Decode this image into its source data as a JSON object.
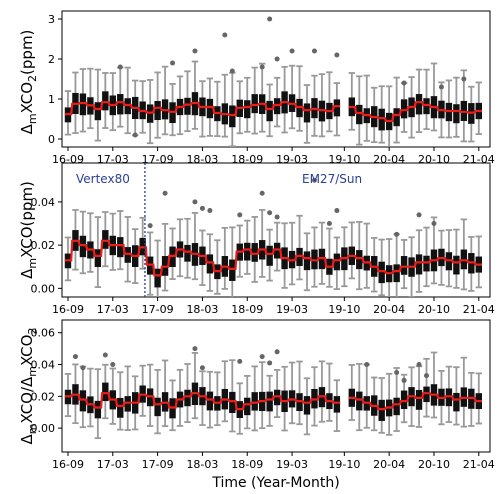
{
  "figure": {
    "xlabel": "Time (Year-Month)",
    "x_tick_labels": [
      "16-09",
      "17-03",
      "17-09",
      "18-03",
      "18-09",
      "19-03",
      "19-10",
      "20-04",
      "20-10",
      "21-04"
    ],
    "x_tick_months": [
      0,
      6,
      12,
      18,
      24,
      30,
      37,
      43,
      49,
      55
    ],
    "month_range": [
      -0.8,
      56.5
    ],
    "colors": {
      "box": "#111111",
      "whisker": "#999999",
      "median": "#e8201c",
      "outlier": "#666666",
      "divider": "#2a3f9a",
      "annotation": "#2a3f9a"
    },
    "annotations": {
      "left": "Vertex80",
      "right": "EM27/Sun",
      "divider_month": 10.3
    }
  },
  "chart_data": [
    {
      "type": "box",
      "panel": "top",
      "ylabel": {
        "prefix": "Δ",
        "sub1": "m",
        "mid": "XCO",
        "sub2": "2",
        "suffix": "(ppm)"
      },
      "ylim": [
        -0.2,
        3.2
      ],
      "yticks": [
        0,
        1,
        2,
        3
      ],
      "medians": [
        0.62,
        0.88,
        0.9,
        0.84,
        0.75,
        0.92,
        0.85,
        0.92,
        0.85,
        0.78,
        0.7,
        0.66,
        0.78,
        0.72,
        0.68,
        0.8,
        0.86,
        0.9,
        0.8,
        0.8,
        0.65,
        0.62,
        0.6,
        0.78,
        0.8,
        0.85,
        0.88,
        0.75,
        0.85,
        0.92,
        0.88,
        0.8,
        0.72,
        0.75,
        0.72,
        0.7,
        0.82,
        0.86,
        0.8,
        0.65,
        0.6,
        0.55,
        0.52,
        0.45,
        0.6,
        0.72,
        0.8,
        0.92,
        0.85,
        0.8,
        0.72,
        0.7,
        0.7,
        0.68,
        0.66,
        0.7
      ],
      "gaps": [
        37
      ],
      "outliers": [
        [
          7,
          1.8
        ],
        [
          9,
          0.1
        ],
        [
          14,
          1.9
        ],
        [
          17,
          2.2
        ],
        [
          21,
          2.6
        ],
        [
          22,
          1.7
        ],
        [
          26,
          1.8
        ],
        [
          27,
          3.0
        ],
        [
          28,
          2.0
        ],
        [
          30,
          2.2
        ],
        [
          33,
          2.2
        ],
        [
          36,
          2.1
        ],
        [
          45,
          1.4
        ],
        [
          50,
          1.3
        ],
        [
          53,
          1.5
        ]
      ]
    },
    {
      "type": "box",
      "panel": "middle",
      "ylabel": {
        "prefix": "Δ",
        "sub1": "m",
        "mid": "XCO",
        "sub2": "",
        "suffix": "(ppm)"
      },
      "ylim": [
        -0.004,
        0.058
      ],
      "yticks": [
        0.0,
        0.02,
        0.04
      ],
      "medians": [
        0.013,
        0.022,
        0.02,
        0.018,
        0.015,
        0.022,
        0.02,
        0.02,
        0.016,
        0.015,
        0.019,
        0.011,
        0.006,
        0.01,
        0.015,
        0.018,
        0.017,
        0.016,
        0.015,
        0.012,
        0.008,
        0.01,
        0.009,
        0.017,
        0.018,
        0.016,
        0.018,
        0.016,
        0.018,
        0.014,
        0.013,
        0.015,
        0.014,
        0.013,
        0.014,
        0.01,
        0.013,
        0.014,
        0.015,
        0.014,
        0.012,
        0.01,
        0.008,
        0.007,
        0.008,
        0.01,
        0.01,
        0.012,
        0.012,
        0.013,
        0.014,
        0.013,
        0.012,
        0.013,
        0.012,
        0.011
      ],
      "gaps": [],
      "outliers": [
        [
          11,
          0.029
        ],
        [
          13,
          0.044
        ],
        [
          17,
          0.04
        ],
        [
          18,
          0.037
        ],
        [
          19,
          0.036
        ],
        [
          23,
          0.034
        ],
        [
          26,
          0.044
        ],
        [
          27,
          0.035
        ],
        [
          28,
          0.033
        ],
        [
          33,
          0.05
        ],
        [
          35,
          0.03
        ],
        [
          36,
          0.036
        ],
        [
          44,
          0.025
        ],
        [
          47,
          0.034
        ],
        [
          49,
          0.03
        ]
      ]
    },
    {
      "type": "box",
      "panel": "bottom",
      "ylabel": {
        "prefix": "Δ",
        "sub1": "m",
        "mid": "XCO/Δ",
        "sub2": "m",
        "suffix": "XCO",
        "sub3": "2"
      },
      "ylim": [
        -0.015,
        0.068
      ],
      "yticks": [
        0.0,
        0.02,
        0.04,
        0.06
      ],
      "medians": [
        0.02,
        0.021,
        0.018,
        0.015,
        0.013,
        0.022,
        0.018,
        0.014,
        0.016,
        0.016,
        0.021,
        0.02,
        0.015,
        0.016,
        0.013,
        0.018,
        0.02,
        0.022,
        0.02,
        0.018,
        0.016,
        0.018,
        0.017,
        0.012,
        0.015,
        0.016,
        0.017,
        0.018,
        0.02,
        0.017,
        0.018,
        0.017,
        0.016,
        0.018,
        0.02,
        0.017,
        0.016,
        0.015,
        0.019,
        0.018,
        0.016,
        0.014,
        0.012,
        0.013,
        0.015,
        0.017,
        0.02,
        0.019,
        0.022,
        0.021,
        0.019,
        0.02,
        0.018,
        0.019,
        0.019,
        0.017
      ],
      "gaps": [
        37
      ],
      "outliers": [
        [
          1,
          0.045
        ],
        [
          2,
          0.038
        ],
        [
          5,
          0.046
        ],
        [
          6,
          0.04
        ],
        [
          17,
          0.05
        ],
        [
          18,
          0.038
        ],
        [
          23,
          0.042
        ],
        [
          26,
          0.045
        ],
        [
          27,
          0.041
        ],
        [
          28,
          0.048
        ],
        [
          40,
          0.04
        ],
        [
          44,
          0.035
        ],
        [
          45,
          0.03
        ],
        [
          47,
          0.04
        ],
        [
          48,
          0.033
        ]
      ]
    }
  ]
}
